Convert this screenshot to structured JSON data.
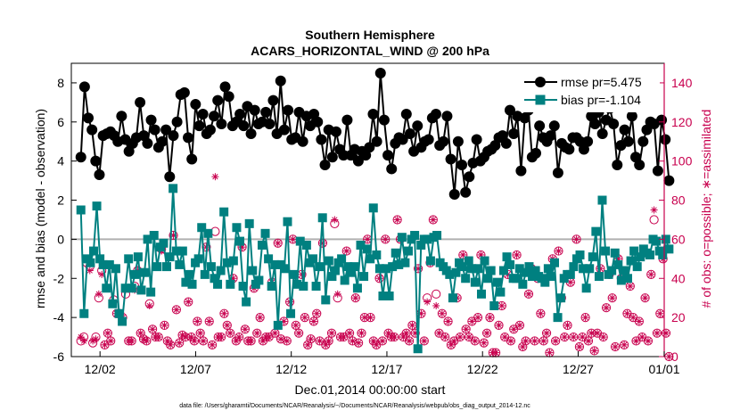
{
  "chart_data": {
    "type": "line",
    "title": "Southern Hemisphere",
    "subtitle": "ACARS_HORIZONTAL_WIND @ 200 hPa",
    "xlabel": "Dec.01,2014 00:00:00 start",
    "ylabel": "rmse and bias (model - observation)",
    "ylabel_right": "# of obs: o=possible; ∗=assimilated",
    "xlim": [
      0.5,
      31.5
    ],
    "ylim": [
      -6,
      9
    ],
    "ylim_right": [
      0,
      150
    ],
    "xticks": [
      {
        "x": 2,
        "label": "12/02"
      },
      {
        "x": 7,
        "label": "12/07"
      },
      {
        "x": 12,
        "label": "12/12"
      },
      {
        "x": 17,
        "label": "12/17"
      },
      {
        "x": 22,
        "label": "12/22"
      },
      {
        "x": 27,
        "label": "12/27"
      },
      {
        "x": 32,
        "label": "01/01"
      }
    ],
    "yticks_left": [
      -6,
      -4,
      -2,
      0,
      2,
      4,
      6,
      8
    ],
    "yticks_right": [
      0,
      20,
      40,
      60,
      80,
      100,
      120,
      140
    ],
    "legend_position": "top-right",
    "colors": {
      "rmse": "#000000",
      "bias": "#008080",
      "obs": "#c8004e",
      "zero_line": "#b0b0b0"
    },
    "series": [
      {
        "name": "rmse",
        "legend_label": "rmse pr=5.475",
        "color": "#000000",
        "values": [
          4.2,
          7.8,
          6.2,
          5.6,
          4.0,
          3.3,
          5.3,
          5.4,
          5.5,
          5.3,
          5.0,
          6.3,
          5.1,
          4.5,
          4.9,
          5.2,
          7.0,
          5.3,
          4.9,
          6.1,
          5.6,
          4.7,
          5.0,
          5.6,
          3.2,
          5.3,
          6.0,
          7.4,
          7.5,
          5.2,
          4.1,
          6.9,
          5.8,
          6.4,
          5.4,
          5.6,
          6.3,
          7.1,
          5.9,
          7.8,
          7.3,
          5.8,
          6.0,
          6.4,
          5.8,
          6.8,
          5.4,
          6.6,
          5.9,
          6.0,
          6.5,
          5.9,
          7.1,
          5.4,
          8.1,
          5.6,
          6.6,
          5.1,
          5.2,
          6.5,
          5.0,
          6.3,
          5.8,
          6.4,
          6.0,
          5.1,
          3.8,
          5.6,
          4.2,
          5.5,
          4.6,
          4.3,
          6.1,
          4.3,
          4.6,
          4.0,
          4.5,
          4.3,
          4.7,
          6.4,
          5.0,
          8.5,
          6.1,
          4.3,
          3.6,
          4.9,
          5.2,
          5.1,
          6.4,
          5.4,
          4.5,
          5.8,
          4.7,
          5.0,
          5.1,
          6.2,
          6.4,
          4.8,
          5.0,
          6.3,
          4.1,
          2.3,
          5.0,
          3.8,
          2.4,
          3.2,
          3.9,
          5.1,
          4.0,
          4.2,
          4.5,
          4.6,
          4.8,
          5.2,
          5.3,
          4.9,
          6.6,
          5.4,
          6.3,
          3.5,
          6.2,
          6.6,
          4.2,
          4.4,
          5.8,
          5.2,
          5.0,
          5.3,
          5.8,
          3.4,
          4.9,
          4.7,
          4.6,
          5.2,
          5.2,
          5.0,
          4.6,
          5.0,
          6.3,
          5.9,
          6.5,
          5.4,
          6.1,
          6.7,
          5.9,
          3.8,
          4.8,
          5.6,
          5.0,
          6.3,
          4.2,
          3.8,
          5.0,
          5.6,
          6.0,
          5.9,
          3.5,
          6.1,
          5.1,
          3.0
        ]
      },
      {
        "name": "bias",
        "legend_label": "bias pr=-1.104",
        "color": "#008080",
        "values": [
          1.5,
          -3.8,
          -1.0,
          -1.2,
          -0.6,
          1.7,
          -1.0,
          -1.3,
          -2.5,
          -1.3,
          -3.3,
          -1.5,
          -3.8,
          -4.2,
          -2.5,
          -1.0,
          -2.5,
          -1.8,
          -0.9,
          -2.6,
          -1.7,
          0.0,
          -2.7,
          0.2,
          -1.4,
          -0.4,
          -0.2,
          -1.4,
          -0.9,
          2.6,
          -0.6,
          -1.3,
          -0.6,
          -2.2,
          -1.8,
          -2.3,
          -1.2,
          -1.0,
          0.6,
          -1.8,
          0.3,
          -1.4,
          -2.0,
          -2.3,
          -1.6,
          1.4,
          -1.2,
          -2.3,
          -1.1,
          0.6,
          -0.1,
          -2.4,
          -3.2,
          0.8,
          -1.6,
          -2.3,
          -2.1,
          -0.3,
          0.3,
          -1.0,
          -2.4,
          -1.3,
          -4.4,
          -1.3,
          -1.5,
          0.9,
          -3.8,
          -1.8,
          -2.3,
          -0.1,
          -2.4,
          -0.3,
          -1.2,
          -1.0,
          -2.4,
          -1.4,
          1.1,
          -3.1,
          -1.1,
          -1.9,
          -1.6,
          -1.2,
          -1.0,
          -2.1,
          -1.4,
          -1.7,
          -1.4,
          -2.5,
          -0.3,
          -1.9,
          -0.5,
          -1.0,
          1.6,
          -0.8,
          -1.5,
          -2.9,
          -1.5,
          -2.9,
          -1.4,
          -0.7,
          -1.3,
          0.1,
          -1.2,
          -0.6,
          0.0,
          0.2,
          -5.6,
          -0.3,
          0.0,
          0.0,
          -1.1,
          0.1,
          0.2,
          -1.2,
          -1.4,
          -1.6,
          -1.8,
          -3.0,
          -1.7,
          -1.2,
          -1.4,
          -2.0,
          -1.1,
          -1.5,
          -2.2,
          -1.5,
          -2.8,
          -1.1,
          -2.0,
          -1.6,
          -3.4,
          -2.2,
          -2.7,
          -1.6,
          -0.9,
          -1.3,
          -2.0,
          -2.0,
          -1.5,
          -2.3,
          -1.7,
          -1.4,
          -1.9,
          -1.6,
          -1.9,
          -2.0,
          -2.2,
          -1.5,
          -1.9,
          -1.2,
          -4.0,
          -3.0,
          -2.0,
          -1.8,
          -1.8,
          -1.4,
          -1.0,
          -0.8,
          -1.5,
          -2.5,
          -1.5,
          -0.9,
          0.4,
          -1.9,
          2.0,
          -0.6,
          -1.8,
          -1.6,
          -0.7,
          -1.3,
          -2.1,
          -1.6,
          -2.0,
          -1.1,
          -0.6,
          -1.4,
          -0.9,
          -0.5,
          -0.7,
          -0.8,
          0.0,
          -0.1,
          -0.6,
          -0.8,
          0.0,
          -0.5
        ]
      }
    ],
    "obs_possible": [
      8,
      10,
      48,
      46,
      7,
      10,
      30,
      44,
      6,
      12,
      8,
      29,
      22,
      22,
      20,
      32,
      8,
      8,
      36,
      44,
      12,
      9,
      8,
      27,
      14,
      10,
      10,
      55,
      16,
      8,
      6,
      62,
      24,
      7,
      11,
      10,
      28,
      10,
      8,
      18,
      12,
      8,
      56,
      18,
      6,
      64,
      10,
      10,
      22,
      16,
      12,
      40,
      8,
      10,
      56,
      14,
      8,
      8,
      35,
      12,
      20,
      8,
      10,
      10,
      38,
      12,
      58,
      9,
      18,
      8,
      28,
      60,
      16,
      12,
      42,
      20,
      6,
      9,
      18,
      22,
      8,
      58,
      6,
      8,
      12,
      68,
      30,
      10,
      10,
      54,
      12,
      8,
      30,
      7,
      12,
      20,
      60,
      20,
      8,
      6,
      40,
      8,
      60,
      12,
      10,
      10,
      70,
      60,
      10,
      12,
      8,
      16,
      12,
      45,
      22,
      8,
      30,
      48,
      70,
      32,
      12,
      22,
      10,
      18,
      6,
      8,
      30,
      10,
      52,
      14,
      10,
      18,
      8,
      20,
      52,
      7,
      12,
      20,
      2,
      2,
      16,
      26,
      10,
      42,
      8,
      14,
      52,
      16,
      5,
      8,
      32,
      45,
      8,
      40,
      22,
      8,
      12,
      2,
      50,
      8,
      54,
      30,
      10,
      16,
      38,
      10,
      60,
      5,
      10,
      20,
      8,
      12,
      3,
      12,
      45,
      10,
      25,
      42,
      30,
      5,
      50,
      40,
      6,
      22,
      36,
      20,
      8,
      18,
      10,
      30,
      8,
      42,
      70,
      12,
      22,
      50,
      12,
      0
    ],
    "obs_assimilated": [
      10,
      8,
      49,
      44,
      8,
      9,
      32,
      42,
      6,
      12,
      8,
      28,
      22,
      22,
      20,
      34,
      8,
      8,
      34,
      44,
      12,
      9,
      8,
      26,
      14,
      10,
      10,
      54,
      16,
      8,
      6,
      62,
      24,
      7,
      11,
      10,
      28,
      10,
      8,
      18,
      12,
      8,
      56,
      18,
      6,
      92,
      10,
      10,
      22,
      16,
      12,
      40,
      8,
      10,
      56,
      14,
      8,
      8,
      35,
      12,
      20,
      8,
      10,
      10,
      38,
      12,
      58,
      9,
      18,
      8,
      28,
      60,
      16,
      12,
      42,
      20,
      6,
      9,
      18,
      22,
      8,
      58,
      6,
      8,
      12,
      70,
      32,
      10,
      10,
      54,
      12,
      8,
      30,
      7,
      12,
      20,
      60,
      20,
      8,
      6,
      40,
      8,
      60,
      12,
      10,
      10,
      70,
      60,
      10,
      12,
      8,
      16,
      12,
      45,
      22,
      8,
      28,
      48,
      70,
      26,
      12,
      22,
      10,
      18,
      6,
      8,
      30,
      10,
      52,
      14,
      10,
      18,
      8,
      20,
      52,
      7,
      12,
      20,
      2,
      2,
      16,
      26,
      10,
      42,
      8,
      14,
      52,
      16,
      5,
      8,
      32,
      45,
      8,
      40,
      22,
      8,
      12,
      2,
      50,
      8,
      54,
      30,
      10,
      16,
      38,
      10,
      60,
      5,
      10,
      20,
      8,
      12,
      3,
      12,
      45,
      10,
      25,
      42,
      30,
      5,
      50,
      40,
      6,
      22,
      36,
      20,
      8,
      18,
      10,
      30,
      8,
      42,
      75,
      12,
      22,
      50,
      12,
      0
    ]
  },
  "footnote": "data file: /Users/gharamti/Documents/NCAR/Reanalysis/~/Documents/NCAR/Reanalysis/webpub/obs_diag_output_2014-12.nc"
}
